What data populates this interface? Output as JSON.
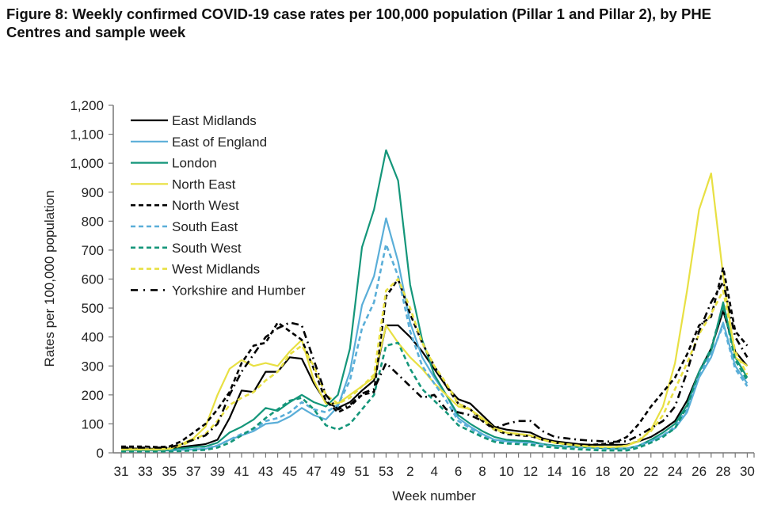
{
  "title": "Figure 8: Weekly confirmed COVID-19 case rates per 100,000 population (Pillar 1 and Pillar 2), by PHE Centres and sample week",
  "chart_data": {
    "type": "line",
    "title": "Figure 8: Weekly confirmed COVID-19 case rates per 100,000 population (Pillar 1 and Pillar 2), by PHE Centres and sample week",
    "xlabel": "Week number",
    "ylabel": "Rates per 100,000 population",
    "ylim": [
      0,
      1200
    ],
    "yticks": [
      0,
      100,
      200,
      300,
      400,
      500,
      600,
      700,
      800,
      900,
      1000,
      1100,
      1200
    ],
    "ytick_labels": [
      "0",
      "100",
      "200",
      "300",
      "400",
      "500",
      "600",
      "700",
      "800",
      "900",
      "1,000",
      "1,100",
      "1,200"
    ],
    "x": [
      31,
      32,
      33,
      34,
      35,
      36,
      37,
      38,
      39,
      40,
      41,
      42,
      43,
      44,
      45,
      46,
      47,
      48,
      49,
      50,
      51,
      52,
      53,
      1,
      2,
      3,
      4,
      5,
      6,
      7,
      8,
      9,
      10,
      11,
      12,
      13,
      14,
      15,
      16,
      17,
      18,
      19,
      20,
      21,
      22,
      23,
      24,
      25,
      26,
      27,
      28,
      29,
      30
    ],
    "xtick_labels": [
      "31",
      "33",
      "35",
      "37",
      "39",
      "41",
      "43",
      "45",
      "47",
      "49",
      "51",
      "53",
      "2",
      "4",
      "6",
      "8",
      "10",
      "12",
      "14",
      "16",
      "18",
      "20",
      "22",
      "24",
      "26",
      "28",
      "30"
    ],
    "grid": false,
    "legend": "top-left",
    "series": [
      {
        "name": "East Midlands",
        "color": "#000000",
        "dash": "solid",
        "values": [
          15,
          15,
          14,
          14,
          15,
          20,
          25,
          30,
          45,
          120,
          215,
          210,
          280,
          280,
          330,
          325,
          240,
          175,
          155,
          175,
          215,
          250,
          440,
          440,
          400,
          350,
          290,
          230,
          185,
          170,
          130,
          90,
          80,
          75,
          70,
          50,
          40,
          35,
          30,
          28,
          28,
          28,
          28,
          40,
          55,
          80,
          110,
          180,
          280,
          360,
          490,
          350,
          300
        ]
      },
      {
        "name": "East of England",
        "color": "#5aaed8",
        "dash": "solid",
        "values": [
          8,
          8,
          8,
          8,
          8,
          10,
          12,
          14,
          25,
          45,
          60,
          75,
          100,
          105,
          125,
          155,
          130,
          115,
          160,
          280,
          510,
          610,
          810,
          660,
          450,
          330,
          260,
          200,
          120,
          90,
          65,
          45,
          40,
          38,
          36,
          30,
          25,
          22,
          20,
          18,
          16,
          14,
          14,
          25,
          40,
          60,
          85,
          140,
          260,
          330,
          450,
          300,
          240
        ]
      },
      {
        "name": "London",
        "color": "#14967a",
        "dash": "solid",
        "values": [
          10,
          10,
          10,
          10,
          10,
          15,
          20,
          22,
          35,
          70,
          90,
          115,
          155,
          145,
          175,
          200,
          175,
          160,
          200,
          360,
          710,
          840,
          1045,
          940,
          580,
          390,
          270,
          200,
          130,
          100,
          75,
          55,
          45,
          42,
          40,
          30,
          25,
          22,
          20,
          18,
          16,
          15,
          15,
          25,
          45,
          70,
          100,
          165,
          280,
          350,
          520,
          330,
          260
        ]
      },
      {
        "name": "North East",
        "color": "#e8e043",
        "dash": "solid",
        "values": [
          12,
          12,
          12,
          12,
          14,
          30,
          50,
          90,
          200,
          290,
          320,
          300,
          310,
          300,
          350,
          390,
          250,
          170,
          170,
          200,
          230,
          260,
          440,
          380,
          330,
          290,
          240,
          200,
          160,
          150,
          120,
          85,
          70,
          65,
          60,
          45,
          35,
          30,
          25,
          22,
          20,
          20,
          25,
          40,
          80,
          160,
          310,
          560,
          840,
          965,
          610,
          330,
          300
        ]
      },
      {
        "name": "North West",
        "color": "#000000",
        "dash": "dash",
        "values": [
          22,
          22,
          22,
          20,
          22,
          40,
          70,
          100,
          150,
          210,
          310,
          370,
          380,
          450,
          420,
          390,
          290,
          180,
          140,
          160,
          200,
          210,
          540,
          600,
          480,
          380,
          300,
          230,
          170,
          150,
          110,
          80,
          65,
          60,
          58,
          45,
          35,
          30,
          28,
          28,
          30,
          35,
          55,
          100,
          160,
          210,
          260,
          340,
          440,
          470,
          640,
          420,
          370
        ]
      },
      {
        "name": "South East",
        "color": "#5aaed8",
        "dash": "dash",
        "values": [
          8,
          8,
          8,
          8,
          8,
          10,
          12,
          15,
          25,
          45,
          65,
          80,
          110,
          120,
          140,
          175,
          150,
          140,
          165,
          250,
          430,
          520,
          720,
          610,
          420,
          300,
          240,
          180,
          110,
          85,
          60,
          42,
          38,
          35,
          33,
          28,
          22,
          20,
          18,
          16,
          15,
          14,
          14,
          25,
          40,
          60,
          90,
          150,
          270,
          340,
          440,
          290,
          230
        ]
      },
      {
        "name": "South West",
        "color": "#14967a",
        "dash": "dash",
        "values": [
          5,
          5,
          5,
          5,
          5,
          6,
          8,
          10,
          18,
          35,
          60,
          85,
          120,
          150,
          180,
          190,
          150,
          95,
          80,
          100,
          150,
          200,
          370,
          380,
          290,
          220,
          180,
          140,
          95,
          75,
          55,
          38,
          32,
          30,
          28,
          22,
          18,
          15,
          12,
          10,
          8,
          8,
          8,
          18,
          35,
          55,
          85,
          160,
          280,
          360,
          510,
          320,
          250
        ]
      },
      {
        "name": "West Midlands",
        "color": "#e8e043",
        "dash": "dash",
        "values": [
          12,
          12,
          12,
          12,
          14,
          25,
          45,
          65,
          110,
          165,
          190,
          210,
          250,
          280,
          340,
          370,
          300,
          200,
          170,
          190,
          230,
          270,
          560,
          600,
          500,
          380,
          300,
          240,
          170,
          150,
          115,
          80,
          70,
          65,
          60,
          45,
          35,
          30,
          25,
          22,
          20,
          20,
          25,
          45,
          75,
          130,
          220,
          310,
          410,
          480,
          560,
          350,
          270
        ]
      },
      {
        "name": "Yorkshire and Humber",
        "color": "#000000",
        "dash": "dashdot",
        "values": [
          18,
          18,
          18,
          18,
          18,
          30,
          45,
          60,
          100,
          200,
          280,
          340,
          400,
          430,
          450,
          440,
          320,
          200,
          150,
          165,
          205,
          220,
          310,
          270,
          230,
          190,
          200,
          150,
          140,
          130,
          110,
          85,
          100,
          110,
          110,
          75,
          55,
          50,
          45,
          42,
          40,
          38,
          40,
          60,
          85,
          110,
          160,
          280,
          420,
          520,
          590,
          400,
          330
        ]
      }
    ]
  }
}
